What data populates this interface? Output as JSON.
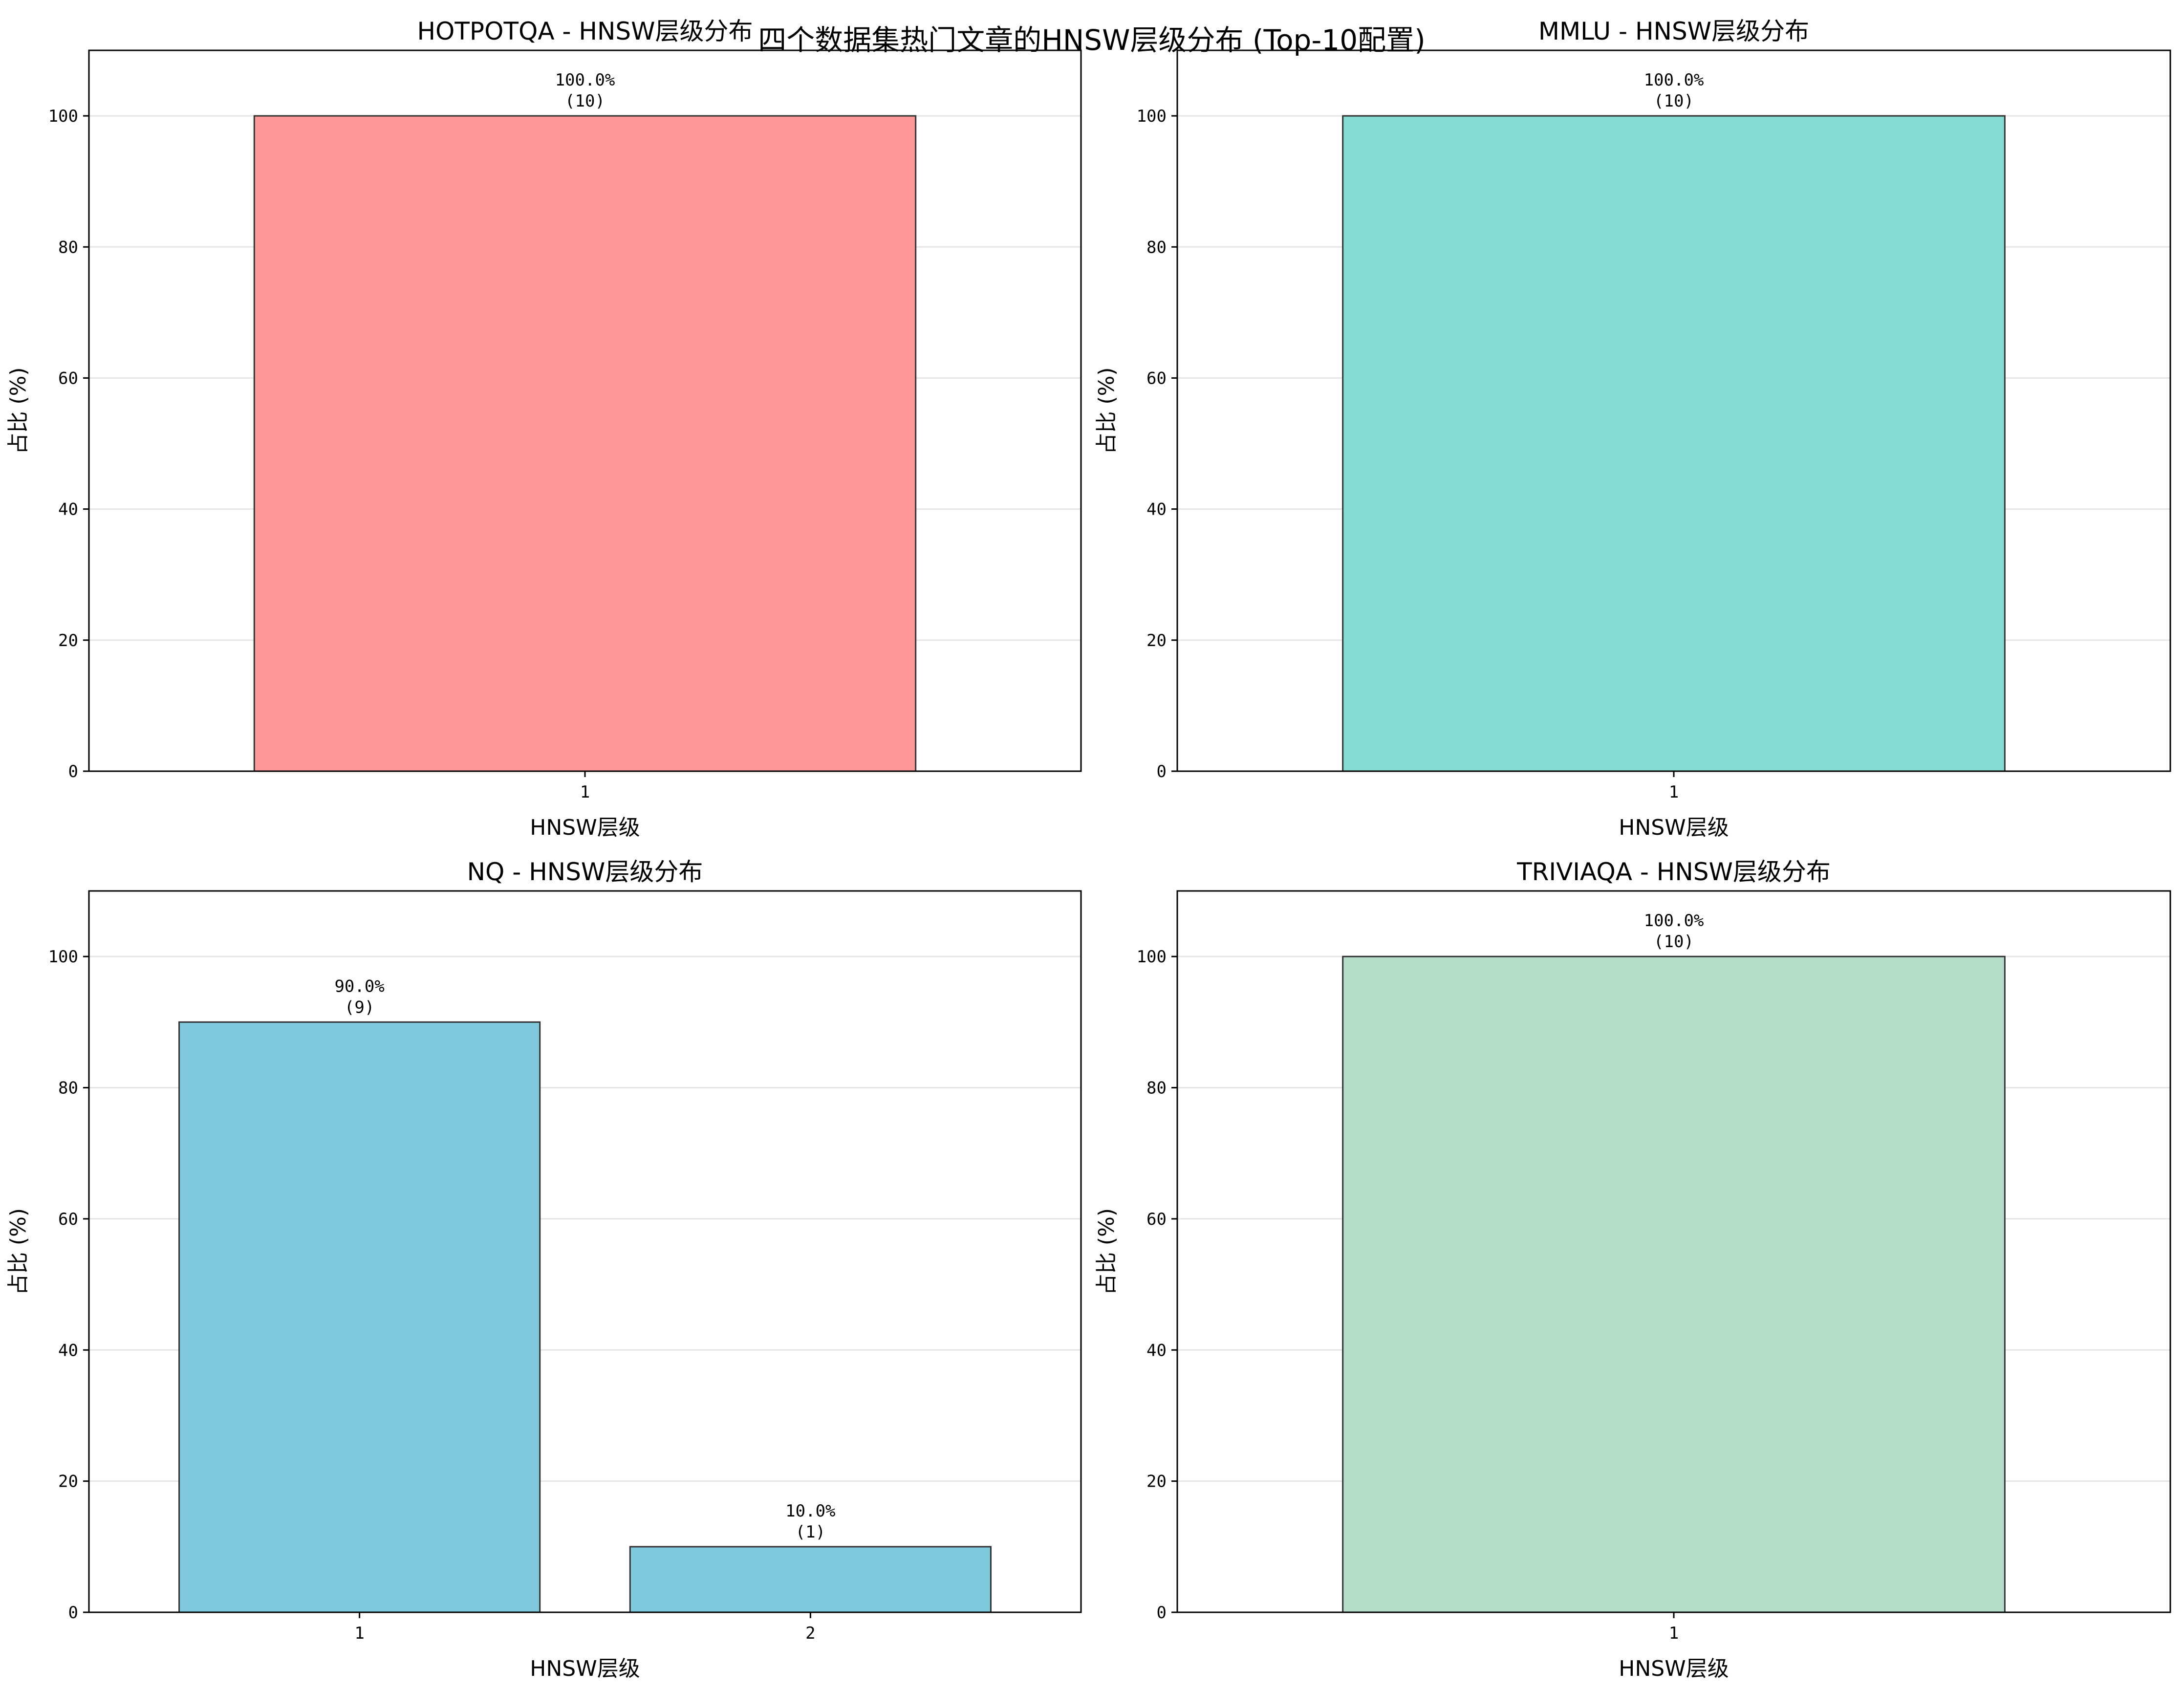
{
  "figure": {
    "suptitle": "四个数据集热门文章的HNSW层级分布 (Top-10配置)"
  },
  "chart_data": [
    {
      "type": "bar",
      "title": "HOTPOTQA - HNSW层级分布",
      "xlabel": "HNSW层级",
      "ylabel": "占比 (%)",
      "ylim": [
        0,
        110
      ],
      "yticks": [
        0,
        20,
        40,
        60,
        80,
        100
      ],
      "grid": "y",
      "color": "#ff9999",
      "categories": [
        "1"
      ],
      "values": [
        100.0
      ],
      "counts": [
        10
      ],
      "data_labels": [
        {
          "percent": "100.0%",
          "count": "(10)"
        }
      ]
    },
    {
      "type": "bar",
      "title": "MMLU - HNSW层级分布",
      "xlabel": "HNSW层级",
      "ylabel": "占比 (%)",
      "ylim": [
        0,
        110
      ],
      "yticks": [
        0,
        20,
        40,
        60,
        80,
        100
      ],
      "grid": "y",
      "color": "#84dbd4",
      "categories": [
        "1"
      ],
      "values": [
        100.0
      ],
      "counts": [
        10
      ],
      "data_labels": [
        {
          "percent": "100.0%",
          "count": "(10)"
        }
      ]
    },
    {
      "type": "bar",
      "title": "NQ - HNSW层级分布",
      "xlabel": "HNSW层级",
      "ylabel": "占比 (%)",
      "ylim": [
        0,
        110
      ],
      "yticks": [
        0,
        20,
        40,
        60,
        80,
        100
      ],
      "grid": "y",
      "color": "#7ecadc",
      "categories": [
        "1",
        "2"
      ],
      "values": [
        90.0,
        10.0
      ],
      "counts": [
        9,
        1
      ],
      "data_labels": [
        {
          "percent": "90.0%",
          "count": "(9)"
        },
        {
          "percent": "10.0%",
          "count": "(1)"
        }
      ]
    },
    {
      "type": "bar",
      "title": "TRIVIAQA - HNSW层级分布",
      "xlabel": "HNSW层级",
      "ylabel": "占比 (%)",
      "ylim": [
        0,
        110
      ],
      "yticks": [
        0,
        20,
        40,
        60,
        80,
        100
      ],
      "grid": "y",
      "color": "#b5dcc9",
      "categories": [
        "1"
      ],
      "values": [
        100.0
      ],
      "counts": [
        10
      ],
      "data_labels": [
        {
          "percent": "100.0%",
          "count": "(10)"
        }
      ]
    }
  ]
}
